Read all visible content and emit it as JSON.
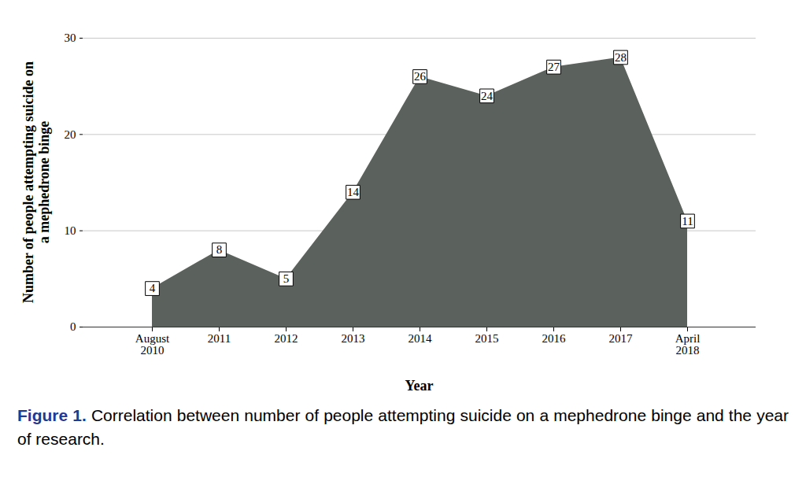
{
  "chart_data": {
    "type": "area",
    "title": "Figure 1. Correlation between number of people attempting suicide on a mephedrone binge and the year of research.",
    "xlabel": "Year",
    "ylabel": "Number of people attempting suicide on\na mephedrone binge",
    "categories": [
      "August 2010",
      "2011",
      "2012",
      "2013",
      "2014",
      "2015",
      "2016",
      "2017",
      "April 2018"
    ],
    "values": [
      4,
      8,
      5,
      14,
      26,
      24,
      27,
      28,
      11
    ],
    "color": "#5b615c",
    "ylim": [
      0,
      30
    ],
    "yticks": [
      0,
      10,
      20,
      30
    ],
    "grid": true,
    "data_labels": true
  }
}
